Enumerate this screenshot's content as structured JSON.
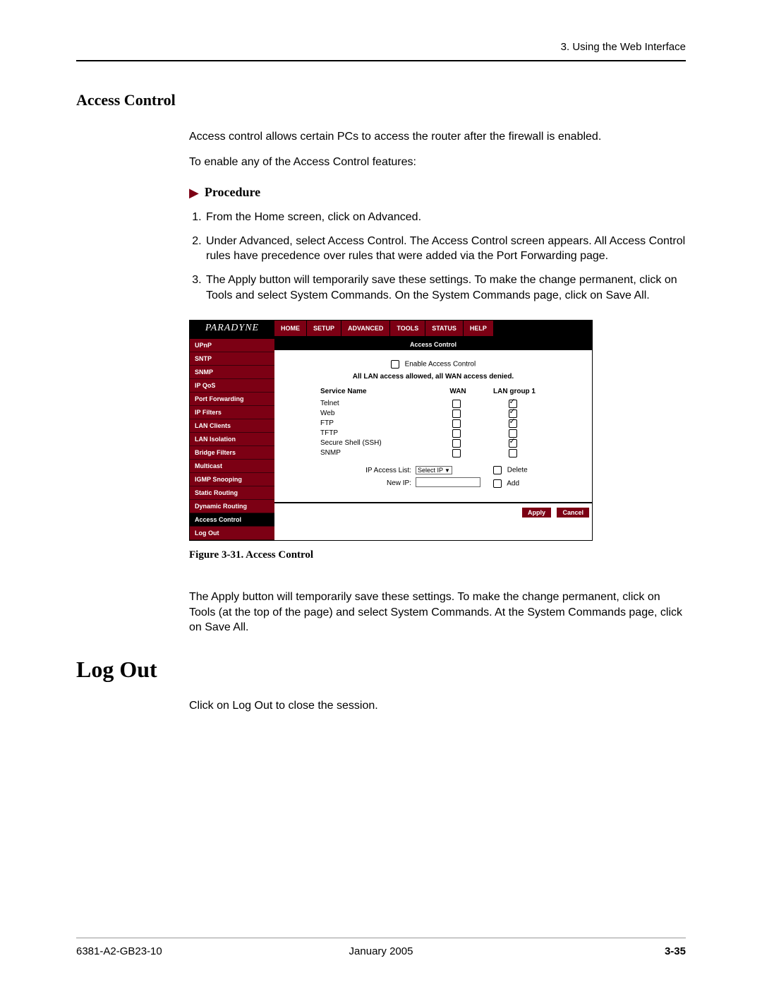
{
  "header": {
    "running": "3. Using the Web Interface"
  },
  "section": {
    "title": "Access Control",
    "intro1": "Access control allows certain PCs to access the router after the firewall is enabled.",
    "intro2": "To enable any of the Access Control features:",
    "procedure_label": "Procedure",
    "steps": [
      "From the Home screen, click on Advanced.",
      "Under Advanced, select Access Control. The Access Control screen appears. All Access Control rules have precedence over rules that were added via the Port Forwarding page.",
      "The Apply button will temporarily save these settings. To make the change permanent, click on Tools and select System Commands. On the System Commands page, click on Save All."
    ]
  },
  "ui": {
    "brand": "PARADYNE",
    "tabs": [
      "HOME",
      "SETUP",
      "ADVANCED",
      "TOOLS",
      "STATUS",
      "HELP"
    ],
    "sidebar": [
      "UPnP",
      "SNTP",
      "SNMP",
      "IP QoS",
      "Port Forwarding",
      "IP Filters",
      "LAN Clients",
      "LAN Isolation",
      "Bridge Filters",
      "Multicast",
      "IGMP Snooping",
      "Static Routing",
      "Dynamic Routing",
      "Access Control",
      "Log Out"
    ],
    "active_sidebar": "Access Control",
    "pane_title": "Access Control",
    "enable_label": "Enable Access Control",
    "note": "All LAN access allowed, all WAN access denied.",
    "col_service": "Service Name",
    "col_wan": "WAN",
    "col_lan": "LAN group 1",
    "services": [
      {
        "name": "Telnet",
        "wan": false,
        "lan": true
      },
      {
        "name": "Web",
        "wan": false,
        "lan": true
      },
      {
        "name": "FTP",
        "wan": false,
        "lan": true
      },
      {
        "name": "TFTP",
        "wan": false,
        "lan": false
      },
      {
        "name": "Secure Shell (SSH)",
        "wan": false,
        "lan": true
      },
      {
        "name": "SNMP",
        "wan": false,
        "lan": false
      }
    ],
    "ip_list_label": "IP Access List:",
    "ip_list_value": "Select IP",
    "delete_label": "Delete",
    "new_ip_label": "New IP:",
    "add_label": "Add",
    "apply_label": "Apply",
    "cancel_label": "Cancel",
    "colors": {
      "brand_bg": "#000000",
      "tab_bg": "#7c0014",
      "sidebar_bg": "#7c0014",
      "sidebar_active_bg": "#000000",
      "text_light": "#ffffff",
      "button_bg": "#7c0014"
    }
  },
  "figure_caption": "Figure 3-31.   Access Control",
  "after_fig": "The Apply button will temporarily save these settings. To make the change permanent, click on Tools (at the top of the page) and select System Commands. At the System Commands page, click on Save All.",
  "logout": {
    "title": "Log Out",
    "body": "Click on Log Out to close the session."
  },
  "footer": {
    "left": "6381-A2-GB23-10",
    "center": "January 2005",
    "right": "3-35"
  }
}
